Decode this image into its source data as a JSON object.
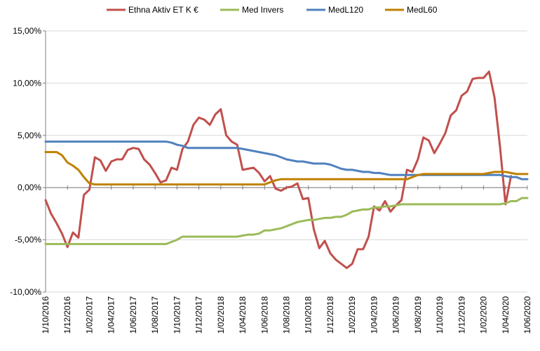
{
  "colors": {
    "ethna": "#c0504d",
    "invers": "#9bbb59",
    "medl120": "#4f81bd",
    "medl60": "#c08000",
    "grid": "#d9d9d9",
    "axis": "#808080"
  },
  "chart_data": {
    "type": "line",
    "title": "",
    "xlabel": "",
    "ylabel": "",
    "ylim": [
      -10,
      15
    ],
    "y_ticks": [
      15,
      10,
      5,
      0,
      -5,
      -10
    ],
    "y_tick_labels": [
      "15,00%",
      "10,00%",
      "5,00%",
      "0,00%",
      "-5,00%",
      "-10,00%"
    ],
    "x_tick_labels": [
      "1/10/2016",
      "1/12/2016",
      "1/02/2017",
      "1/04/2017",
      "1/06/2017",
      "1/08/2017",
      "1/10/2017",
      "1/12/2017",
      "1/02/2018",
      "1/04/2018",
      "1/06/2018",
      "1/08/2018",
      "1/10/2018",
      "1/12/2018",
      "1/02/2019",
      "1/04/2019",
      "1/06/2019",
      "1/08/2019",
      "1/10/2019",
      "1/12/2019",
      "1/02/2020",
      "1/04/2020",
      "1/06/2020"
    ],
    "grid": "horizontal",
    "legend_position": "top",
    "x_unit": "week index from 1/10/2016 (2 months ≈ 8.7)",
    "series": [
      {
        "name": "Ethna Aktiv ET K €",
        "color_key": "ethna",
        "points": [
          [
            0,
            -1.2
          ],
          [
            1,
            -2.5
          ],
          [
            2,
            -3.4
          ],
          [
            3,
            -4.4
          ],
          [
            4,
            -5.7
          ],
          [
            5,
            -4.3
          ],
          [
            6,
            -4.8
          ],
          [
            7,
            -0.7
          ],
          [
            8,
            -0.2
          ],
          [
            9,
            2.9
          ],
          [
            10,
            2.6
          ],
          [
            11,
            1.6
          ],
          [
            12,
            2.5
          ],
          [
            13,
            2.7
          ],
          [
            14,
            2.7
          ],
          [
            15,
            3.6
          ],
          [
            16,
            3.8
          ],
          [
            17,
            3.7
          ],
          [
            18,
            2.7
          ],
          [
            19,
            2.2
          ],
          [
            20,
            1.4
          ],
          [
            21,
            0.5
          ],
          [
            22,
            0.7
          ],
          [
            23,
            1.9
          ],
          [
            24,
            1.7
          ],
          [
            25,
            3.7
          ],
          [
            26,
            4.4
          ],
          [
            27,
            6.0
          ],
          [
            28,
            6.7
          ],
          [
            29,
            6.5
          ],
          [
            30,
            6.0
          ],
          [
            31,
            7.0
          ],
          [
            32,
            7.5
          ],
          [
            33,
            5.0
          ],
          [
            34,
            4.4
          ],
          [
            35,
            4.1
          ],
          [
            36,
            1.7
          ],
          [
            37,
            1.8
          ],
          [
            38,
            1.9
          ],
          [
            39,
            1.4
          ],
          [
            40,
            0.6
          ],
          [
            41,
            1.1
          ],
          [
            42,
            -0.1
          ],
          [
            43,
            -0.3
          ],
          [
            44,
            0.0
          ],
          [
            45,
            0.1
          ],
          [
            46,
            0.4
          ],
          [
            47,
            -1.1
          ],
          [
            48,
            -1.0
          ],
          [
            49,
            -4.0
          ],
          [
            50,
            -5.8
          ],
          [
            51,
            -5.1
          ],
          [
            52,
            -6.3
          ],
          [
            53,
            -6.9
          ],
          [
            54,
            -7.3
          ],
          [
            55,
            -7.7
          ],
          [
            56,
            -7.3
          ],
          [
            57,
            -5.9
          ],
          [
            58,
            -5.9
          ],
          [
            59,
            -4.7
          ],
          [
            60,
            -1.8
          ],
          [
            61,
            -2.2
          ],
          [
            62,
            -1.3
          ],
          [
            63,
            -2.3
          ],
          [
            64,
            -1.7
          ],
          [
            65,
            -1.2
          ],
          [
            66,
            1.7
          ],
          [
            67,
            1.5
          ],
          [
            68,
            2.7
          ],
          [
            69,
            4.8
          ],
          [
            70,
            4.5
          ],
          [
            71,
            3.3
          ],
          [
            72,
            4.2
          ],
          [
            73,
            5.2
          ],
          [
            74,
            6.9
          ],
          [
            75,
            7.4
          ],
          [
            76,
            8.8
          ],
          [
            77,
            9.2
          ],
          [
            78,
            10.4
          ],
          [
            79,
            10.5
          ],
          [
            80,
            10.5
          ],
          [
            81,
            11.1
          ],
          [
            82,
            8.6
          ],
          [
            83,
            3.9
          ],
          [
            84,
            -1.6
          ],
          [
            85,
            1.1
          ],
          [
            86,
            null
          ]
        ]
      },
      {
        "name": "Med Invers",
        "color_key": "invers",
        "points": [
          [
            0,
            -5.4
          ],
          [
            20,
            -5.4
          ],
          [
            22,
            -5.4
          ],
          [
            23,
            -5.2
          ],
          [
            24,
            -5.0
          ],
          [
            25,
            -4.7
          ],
          [
            26,
            -4.7
          ],
          [
            35,
            -4.7
          ],
          [
            36,
            -4.6
          ],
          [
            37,
            -4.5
          ],
          [
            38,
            -4.5
          ],
          [
            39,
            -4.4
          ],
          [
            40,
            -4.1
          ],
          [
            41,
            -4.1
          ],
          [
            42,
            -4.0
          ],
          [
            43,
            -3.9
          ],
          [
            44,
            -3.7
          ],
          [
            45,
            -3.5
          ],
          [
            46,
            -3.3
          ],
          [
            47,
            -3.2
          ],
          [
            48,
            -3.1
          ],
          [
            49,
            -3.1
          ],
          [
            50,
            -3.0
          ],
          [
            51,
            -2.9
          ],
          [
            52,
            -2.9
          ],
          [
            53,
            -2.8
          ],
          [
            54,
            -2.8
          ],
          [
            55,
            -2.6
          ],
          [
            56,
            -2.3
          ],
          [
            57,
            -2.2
          ],
          [
            58,
            -2.1
          ],
          [
            59,
            -2.1
          ],
          [
            60,
            -1.9
          ],
          [
            61,
            -1.9
          ],
          [
            62,
            -1.8
          ],
          [
            63,
            -1.8
          ],
          [
            64,
            -1.7
          ],
          [
            65,
            -1.6
          ],
          [
            83,
            -1.6
          ],
          [
            84,
            -1.5
          ],
          [
            85,
            -1.3
          ],
          [
            86,
            -1.3
          ],
          [
            87,
            -1.0
          ],
          [
            88,
            -1.0
          ]
        ]
      },
      {
        "name": "MedL120",
        "color_key": "medl120",
        "points": [
          [
            0,
            4.4
          ],
          [
            22,
            4.4
          ],
          [
            23,
            4.3
          ],
          [
            24,
            4.1
          ],
          [
            25,
            4.0
          ],
          [
            26,
            3.8
          ],
          [
            35,
            3.8
          ],
          [
            36,
            3.7
          ],
          [
            37,
            3.6
          ],
          [
            38,
            3.5
          ],
          [
            39,
            3.4
          ],
          [
            40,
            3.3
          ],
          [
            41,
            3.2
          ],
          [
            42,
            3.1
          ],
          [
            43,
            2.9
          ],
          [
            44,
            2.7
          ],
          [
            45,
            2.6
          ],
          [
            46,
            2.5
          ],
          [
            47,
            2.5
          ],
          [
            48,
            2.4
          ],
          [
            49,
            2.3
          ],
          [
            50,
            2.3
          ],
          [
            51,
            2.3
          ],
          [
            52,
            2.2
          ],
          [
            53,
            2.0
          ],
          [
            54,
            1.8
          ],
          [
            55,
            1.7
          ],
          [
            56,
            1.7
          ],
          [
            57,
            1.6
          ],
          [
            58,
            1.5
          ],
          [
            59,
            1.5
          ],
          [
            60,
            1.4
          ],
          [
            61,
            1.4
          ],
          [
            62,
            1.3
          ],
          [
            63,
            1.2
          ],
          [
            64,
            1.2
          ],
          [
            65,
            1.2
          ],
          [
            83,
            1.2
          ],
          [
            84,
            1.1
          ],
          [
            85,
            1.0
          ],
          [
            86,
            1.0
          ],
          [
            87,
            0.8
          ],
          [
            88,
            0.8
          ]
        ]
      },
      {
        "name": "MedL60",
        "color_key": "medl60",
        "points": [
          [
            0,
            3.4
          ],
          [
            1,
            3.4
          ],
          [
            2,
            3.4
          ],
          [
            3,
            3.1
          ],
          [
            4,
            2.4
          ],
          [
            5,
            2.1
          ],
          [
            6,
            1.7
          ],
          [
            7,
            1.0
          ],
          [
            8,
            0.4
          ],
          [
            9,
            0.3
          ],
          [
            40,
            0.3
          ],
          [
            41,
            0.5
          ],
          [
            42,
            0.7
          ],
          [
            43,
            0.8
          ],
          [
            66,
            0.8
          ],
          [
            67,
            1.0
          ],
          [
            68,
            1.2
          ],
          [
            69,
            1.3
          ],
          [
            70,
            1.3
          ],
          [
            80,
            1.3
          ],
          [
            81,
            1.4
          ],
          [
            82,
            1.5
          ],
          [
            83,
            1.5
          ],
          [
            84,
            1.5
          ],
          [
            85,
            1.4
          ],
          [
            86,
            1.3
          ],
          [
            87,
            1.3
          ],
          [
            88,
            1.3
          ]
        ]
      }
    ]
  }
}
